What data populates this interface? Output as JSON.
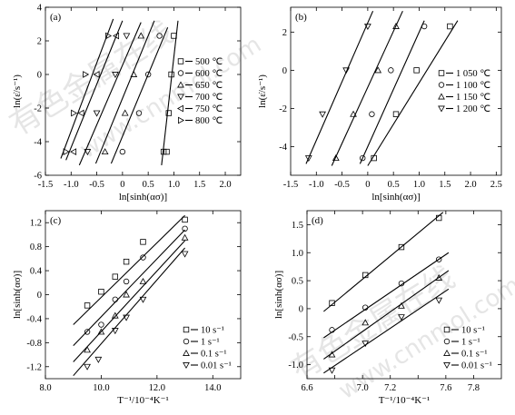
{
  "watermark": {
    "cn": "有色金属在线",
    "url": "www.cnnmol.com"
  },
  "chart_data": [
    {
      "type": "line",
      "panel_label": "(a)",
      "xlabel": "ln[sinh(ασ)]",
      "ylabel": "ln(ε̇/s⁻¹)",
      "xlim": [
        -1.5,
        2.3
      ],
      "ylim": [
        -6,
        4
      ],
      "xticks": [
        -1.5,
        -1.0,
        -0.5,
        0,
        0.5,
        1.0,
        1.5,
        2.0
      ],
      "xticklabels": [
        "-1.5",
        "-1.0",
        "-0.5",
        "0",
        "0.5",
        "1.0",
        "1.5",
        "2.0"
      ],
      "yticks": [
        -6,
        -4,
        -2,
        0,
        2,
        4
      ],
      "yticklabels": [
        "-6",
        "-4",
        "-2",
        "0",
        "2",
        "4"
      ],
      "legend_position": "right",
      "series": [
        {
          "name": "500 ℃",
          "marker": "square",
          "x": [
            1.0,
            0.95,
            0.9,
            0.86,
            0.8
          ],
          "y": [
            2.3,
            0,
            -2.3,
            -4.6,
            -4.6
          ],
          "line": [
            [
              0.76,
              -5.4
            ],
            [
              1.08,
              3.2
            ]
          ]
        },
        {
          "name": "600 ℃",
          "marker": "circle",
          "x": [
            0.72,
            0.5,
            0.32,
            0.0
          ],
          "y": [
            2.3,
            0,
            -2.3,
            -4.6
          ],
          "line": [
            [
              -0.22,
              -5.3
            ],
            [
              0.88,
              2.8
            ]
          ]
        },
        {
          "name": "650 ℃",
          "marker": "triangle-up",
          "x": [
            0.36,
            0.22,
            0.05,
            -0.34
          ],
          "y": [
            2.3,
            0,
            -2.3,
            -4.6
          ],
          "line": [
            [
              -0.52,
              -5.3
            ],
            [
              0.62,
              3.2
            ]
          ]
        },
        {
          "name": "700 ℃",
          "marker": "triangle-down",
          "x": [
            0.08,
            -0.14,
            -0.5,
            -0.68
          ],
          "y": [
            2.3,
            0,
            -2.3,
            -4.6
          ],
          "line": [
            [
              -0.84,
              -5.4
            ],
            [
              0.36,
              3.1
            ]
          ]
        },
        {
          "name": "750 ℃",
          "marker": "triangle-left",
          "x": [
            -0.12,
            -0.5,
            -0.8,
            -0.95
          ],
          "y": [
            2.3,
            0,
            -2.3,
            -4.6
          ],
          "line": [
            [
              -1.1,
              -5.1
            ],
            [
              0.0,
              3.2
            ]
          ]
        },
        {
          "name": "800 ℃",
          "marker": "triangle-right",
          "x": [
            -0.28,
            -0.72,
            -0.95,
            -1.1
          ],
          "y": [
            2.3,
            0,
            -2.3,
            -4.6
          ],
          "line": [
            [
              -1.2,
              -5.0
            ],
            [
              -0.18,
              3.3
            ]
          ]
        }
      ]
    },
    {
      "type": "line",
      "panel_label": "(b)",
      "xlabel": "ln[sinh(ασ)]",
      "ylabel": "ln(ε̇/s⁻¹)",
      "xlim": [
        -1.5,
        2.6
      ],
      "ylim": [
        -5.5,
        3.3
      ],
      "xticks": [
        -1.5,
        -1.0,
        -0.5,
        0,
        0.5,
        1.0,
        1.5,
        2.0,
        2.5
      ],
      "xticklabels": [
        "-1.5",
        "-1.0",
        "-0.5",
        "0",
        "0.5",
        "1.0",
        "1.5",
        "2.0",
        "2.5"
      ],
      "yticks": [
        -4,
        -2,
        0,
        2
      ],
      "yticklabels": [
        "-4",
        "-2",
        "0",
        "2"
      ],
      "legend_position": "right",
      "series": [
        {
          "name": "1 050 ℃",
          "marker": "square",
          "x": [
            1.6,
            0.95,
            0.55,
            0.12
          ],
          "y": [
            2.3,
            0,
            -2.3,
            -4.6
          ],
          "line": [
            [
              0.0,
              -5.0
            ],
            [
              1.75,
              2.6
            ]
          ]
        },
        {
          "name": "1 100 ℃",
          "marker": "circle",
          "x": [
            1.1,
            0.45,
            0.08,
            -0.1
          ],
          "y": [
            2.3,
            0,
            -2.3,
            -4.6
          ],
          "line": [
            [
              -0.15,
              -4.9
            ],
            [
              1.1,
              2.6
            ]
          ]
        },
        {
          "name": "1 150 ℃",
          "marker": "triangle-up",
          "x": [
            0.55,
            0.2,
            -0.28,
            -0.62
          ],
          "y": [
            2.3,
            0,
            -2.3,
            -4.6
          ],
          "line": [
            [
              -0.7,
              -5.0
            ],
            [
              0.68,
              3.1
            ]
          ]
        },
        {
          "name": "1 200 ℃",
          "marker": "triangle-down",
          "x": [
            0.0,
            -0.42,
            -0.88,
            -1.15
          ],
          "y": [
            2.3,
            0,
            -2.3,
            -4.6
          ],
          "line": [
            [
              -1.2,
              -4.9
            ],
            [
              0.1,
              3.1
            ]
          ]
        }
      ]
    },
    {
      "type": "line",
      "panel_label": "(c)",
      "xlabel": "T⁻¹/10⁻⁴K⁻¹",
      "ylabel": "ln[sinh(ασ)]",
      "xlim": [
        8.0,
        15.0
      ],
      "ylim": [
        -1.4,
        1.4
      ],
      "xticks": [
        8.0,
        10.0,
        12.0,
        14.0
      ],
      "xticklabels": [
        "8.0",
        "10.0",
        "12.0",
        "14.0"
      ],
      "yticks": [
        -1.2,
        -0.8,
        -0.4,
        0,
        0.4,
        0.8,
        1.2
      ],
      "yticklabels": [
        "-1.2",
        "-0.8",
        "-0.4",
        "0",
        "0.4",
        "0.8",
        "1.2"
      ],
      "legend_position": "bottom-right",
      "series": [
        {
          "name": "10 s⁻¹",
          "marker": "square",
          "x": [
            9.5,
            10.0,
            10.5,
            10.9,
            11.5,
            13.0
          ],
          "y": [
            -0.18,
            0.05,
            0.3,
            0.55,
            0.88,
            1.25
          ],
          "line": [
            [
              9.0,
              -0.5
            ],
            [
              13.0,
              1.32
            ]
          ]
        },
        {
          "name": "1 s⁻¹",
          "marker": "circle",
          "x": [
            9.5,
            10.0,
            10.5,
            10.9,
            11.5,
            13.0
          ],
          "y": [
            -0.62,
            -0.5,
            -0.08,
            0.22,
            0.62,
            1.1
          ],
          "line": [
            [
              9.0,
              -0.85
            ],
            [
              13.0,
              1.08
            ]
          ]
        },
        {
          "name": "0.1 s⁻¹",
          "marker": "triangle-up",
          "x": [
            9.5,
            10.0,
            10.5,
            10.9,
            11.5,
            13.0
          ],
          "y": [
            -0.92,
            -0.62,
            -0.35,
            0.0,
            0.22,
            0.95
          ],
          "line": [
            [
              9.0,
              -1.12
            ],
            [
              13.0,
              0.9
            ]
          ]
        },
        {
          "name": "0.01 s⁻¹",
          "marker": "triangle-down",
          "x": [
            9.5,
            9.9,
            10.5,
            10.9,
            11.5,
            13.0
          ],
          "y": [
            -1.2,
            -1.08,
            -0.6,
            -0.38,
            -0.08,
            0.68
          ],
          "line": [
            [
              9.0,
              -1.35
            ],
            [
              13.0,
              0.78
            ]
          ]
        }
      ]
    },
    {
      "type": "line",
      "panel_label": "(d)",
      "xlabel": "T⁻¹/10⁻⁴K⁻¹",
      "ylabel": "ln[sinh(ασ)]",
      "xlim": [
        6.6,
        8.0
      ],
      "ylim": [
        -1.25,
        1.75
      ],
      "xticks": [
        6.6,
        6.8,
        7.0,
        7.2,
        7.4,
        7.6,
        7.8
      ],
      "xticklabels": [
        "6.6",
        "",
        "7.0",
        "7.2",
        "",
        "7.6",
        "7.8"
      ],
      "yticks": [
        -1.0,
        -0.5,
        0,
        0.5,
        1.0,
        1.5
      ],
      "yticklabels": [
        "-1.0",
        "-0.5",
        "0",
        "0.5",
        "1.0",
        "1.5"
      ],
      "legend_position": "bottom-right",
      "series": [
        {
          "name": "10 s⁻¹",
          "marker": "square",
          "x": [
            6.78,
            7.02,
            7.28,
            7.55
          ],
          "y": [
            0.1,
            0.6,
            1.1,
            1.62
          ],
          "line": [
            [
              6.72,
              -0.05
            ],
            [
              7.58,
              1.72
            ]
          ]
        },
        {
          "name": "1 s⁻¹",
          "marker": "circle",
          "x": [
            6.78,
            7.02,
            7.28,
            7.55
          ],
          "y": [
            -0.38,
            0.02,
            0.45,
            0.88
          ],
          "line": [
            [
              6.72,
              -0.52
            ],
            [
              7.62,
              1.0
            ]
          ]
        },
        {
          "name": "0.1 s⁻¹",
          "marker": "triangle-up",
          "x": [
            6.78,
            7.02,
            7.28,
            7.55
          ],
          "y": [
            -0.82,
            -0.25,
            0.05,
            0.55
          ],
          "line": [
            [
              6.72,
              -0.9
            ],
            [
              7.62,
              0.68
            ]
          ]
        },
        {
          "name": "0.01 s⁻¹",
          "marker": "triangle-down",
          "x": [
            6.78,
            7.02,
            7.28,
            7.55
          ],
          "y": [
            -1.1,
            -0.62,
            -0.15,
            0.15
          ],
          "line": [
            [
              6.72,
              -1.15
            ],
            [
              7.62,
              0.35
            ]
          ]
        }
      ]
    }
  ]
}
